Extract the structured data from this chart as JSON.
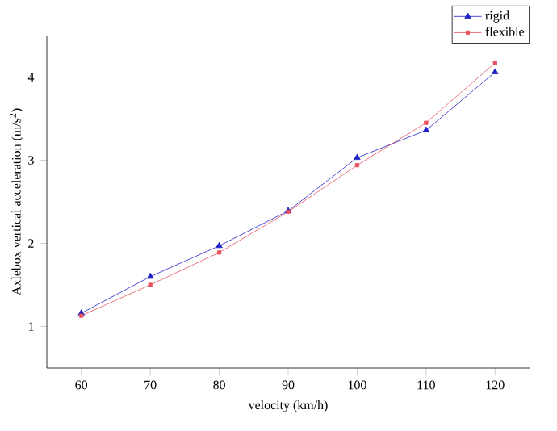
{
  "chart_data": {
    "type": "line",
    "xlabel": "velocity (km/h)",
    "ylabel": "Axlebox vertical acceleration (m/s$^{2}$)",
    "x": [
      60,
      70,
      80,
      90,
      100,
      110,
      120
    ],
    "series": [
      {
        "name": "rigid",
        "color": "#1f1fc8",
        "marker": "triangle",
        "values": [
          1.16,
          1.6,
          1.97,
          2.39,
          3.03,
          3.36,
          4.06
        ]
      },
      {
        "name": "flexible",
        "color": "#e8505a",
        "marker": "square",
        "values": [
          1.13,
          1.5,
          1.89,
          2.38,
          2.94,
          3.45,
          4.17
        ]
      }
    ],
    "xlim": [
      55,
      125
    ],
    "ylim": [
      0.5,
      4.5
    ],
    "xticks": [
      60,
      70,
      80,
      90,
      100,
      110,
      120
    ],
    "yticks": [
      1,
      2,
      3,
      4
    ],
    "grid": false,
    "legend": "top right",
    "line_style": "solid"
  }
}
